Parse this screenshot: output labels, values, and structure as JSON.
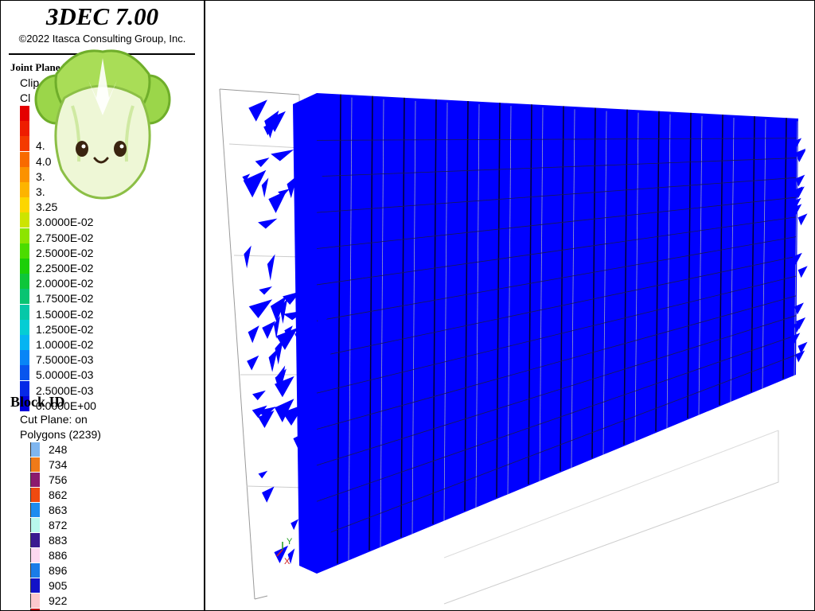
{
  "header": {
    "app_title": "3DEC 7.00",
    "copyright": "©2022 Itasca Consulting Group, Inc."
  },
  "joint_legend": {
    "heading": "Joint Plane Displacement",
    "clip_lines": [
      "Clip",
      "Cl"
    ],
    "levels": [
      {
        "label": "",
        "color": "#e40000"
      },
      {
        "label": "",
        "color": "#ee1d00"
      },
      {
        "label": "4.",
        "color": "#f43a00"
      },
      {
        "label": "4.0",
        "color": "#f86a00"
      },
      {
        "label": "3.",
        "color": "#fb9200"
      },
      {
        "label": "3.",
        "color": "#fdb400"
      },
      {
        "label": "3.25",
        "color": "#fdd600"
      },
      {
        "label": "3.0000E-02",
        "color": "#cde400"
      },
      {
        "label": "2.7500E-02",
        "color": "#8de400"
      },
      {
        "label": "2.5000E-02",
        "color": "#4cdc00"
      },
      {
        "label": "2.2500E-02",
        "color": "#1ccf08"
      },
      {
        "label": "2.0000E-02",
        "color": "#0ec63a"
      },
      {
        "label": "1.7500E-02",
        "color": "#08c472"
      },
      {
        "label": "1.5000E-02",
        "color": "#06c8a8"
      },
      {
        "label": "1.2500E-02",
        "color": "#05cdd4"
      },
      {
        "label": "1.0000E-02",
        "color": "#06b4f2"
      },
      {
        "label": "7.5000E-03",
        "color": "#0885f6"
      },
      {
        "label": "5.0000E-03",
        "color": "#0855ee"
      },
      {
        "label": "2.5000E-03",
        "color": "#0628e6"
      },
      {
        "label": "0.0000E+00",
        "color": "#0000dc"
      }
    ]
  },
  "block_legend": {
    "heading": "Block  ID",
    "cut_plane": "Cut Plane: on",
    "polygons": "Polygons (2239)",
    "ids": [
      {
        "label": "248",
        "color": "#7fb6f0"
      },
      {
        "label": "734",
        "color": "#f07a18"
      },
      {
        "label": "756",
        "color": "#8c1a6e"
      },
      {
        "label": "862",
        "color": "#f04a10"
      },
      {
        "label": "863",
        "color": "#1e8cf0"
      },
      {
        "label": "872",
        "color": "#b8f8ec"
      },
      {
        "label": "883",
        "color": "#3a1a90"
      },
      {
        "label": "886",
        "color": "#fcd8f0"
      },
      {
        "label": "896",
        "color": "#1a7ce8"
      },
      {
        "label": "905",
        "color": "#1212c8"
      },
      {
        "label": "922",
        "color": "#fcc8cc"
      }
    ]
  },
  "viewport": {
    "axes": {
      "y": "Y",
      "x": "X"
    },
    "mesh_color": "#0000ff"
  },
  "mascot": {
    "icon": "cabbage-mascot-icon"
  }
}
